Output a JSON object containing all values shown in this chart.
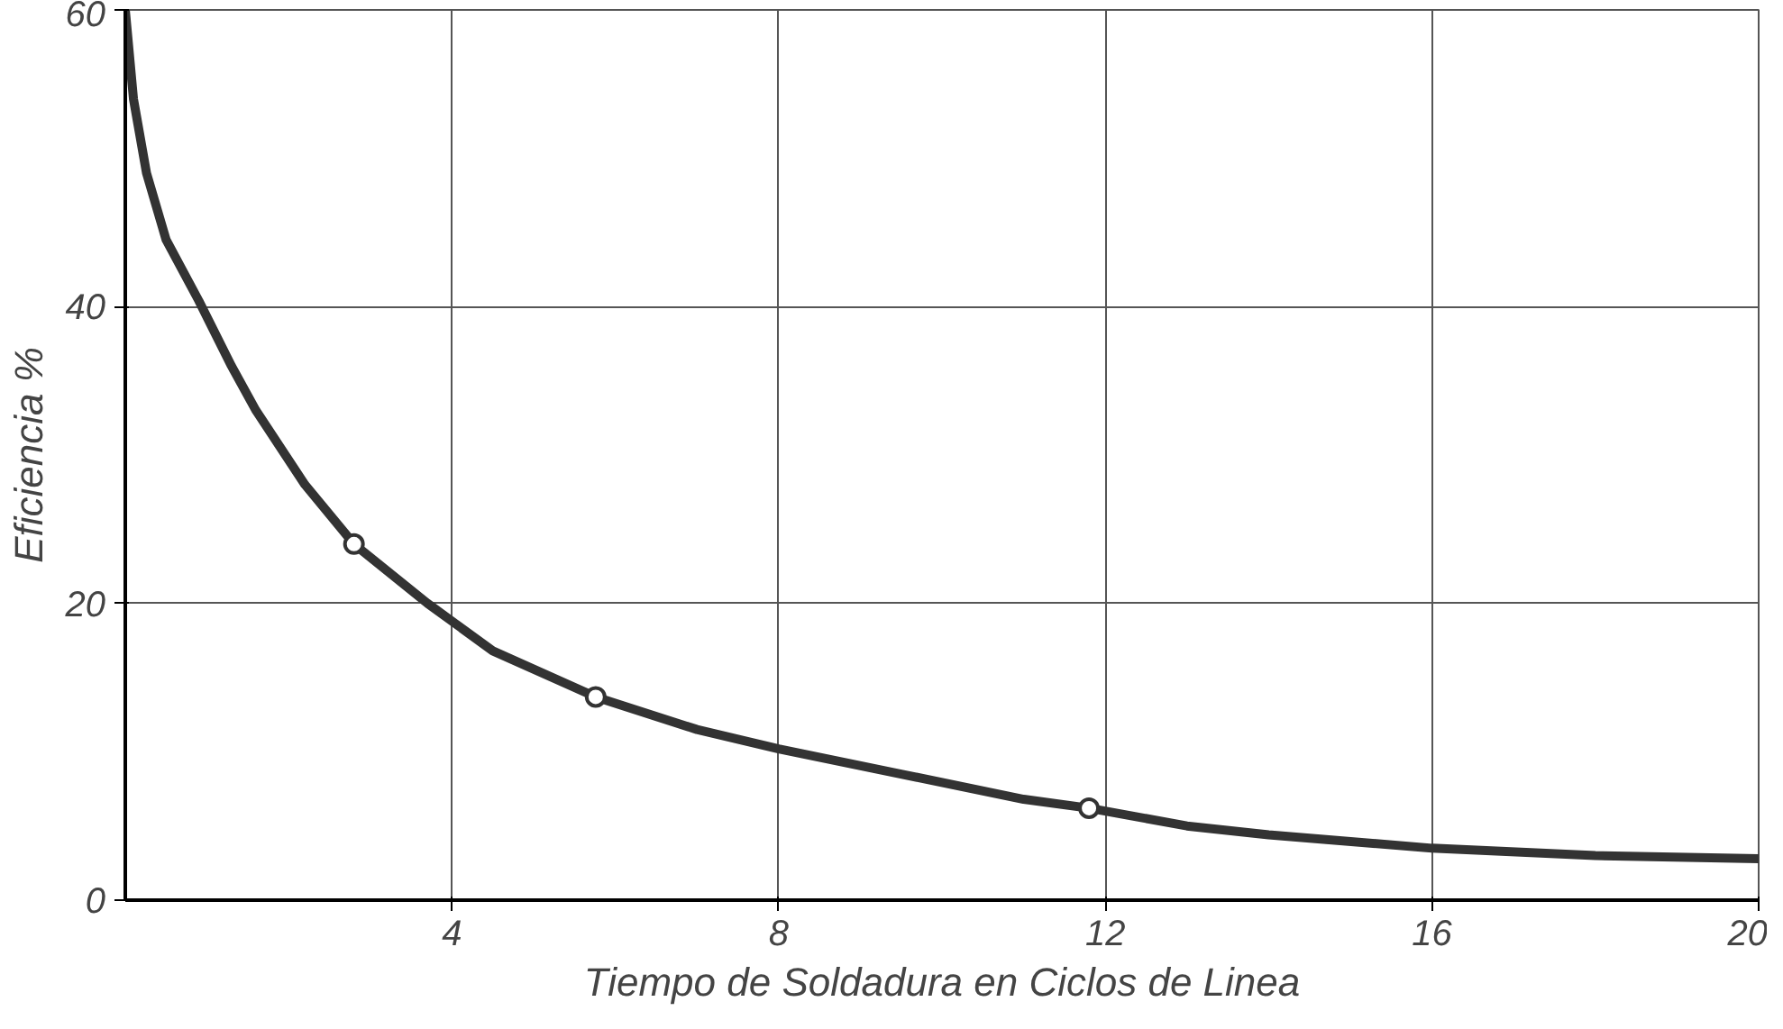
{
  "chart_data": {
    "type": "line",
    "xlabel": "Tiempo de Soldadura en Ciclos de Linea",
    "ylabel": "Eficiencia %",
    "xlim": [
      0,
      20
    ],
    "ylim": [
      0,
      60
    ],
    "xticks": [
      4,
      8,
      12,
      16,
      20
    ],
    "yticks": [
      0,
      20,
      40,
      60
    ],
    "grid": true,
    "series": [
      {
        "color": "#333333",
        "marker": "none",
        "x": [
          0,
          0.1,
          0.26,
          0.5,
          0.9,
          1.3,
          1.6,
          2.2,
          2.8,
          3.7,
          4.5,
          5.76,
          7,
          8,
          9.5,
          11,
          11.8,
          13,
          14,
          16,
          18,
          20
        ],
        "values": [
          60,
          54,
          49,
          44.5,
          40.4,
          36,
          33,
          28,
          24,
          20,
          16.8,
          13.7,
          11.5,
          10.2,
          8.5,
          6.8,
          6.2,
          5.0,
          4.4,
          3.5,
          3.0,
          2.8
        ]
      },
      {
        "type": "scatter",
        "color": "#333333",
        "marker": "circle",
        "x": [
          2.8,
          5.76,
          11.8
        ],
        "values": [
          24,
          13.7,
          6.2
        ]
      }
    ]
  }
}
